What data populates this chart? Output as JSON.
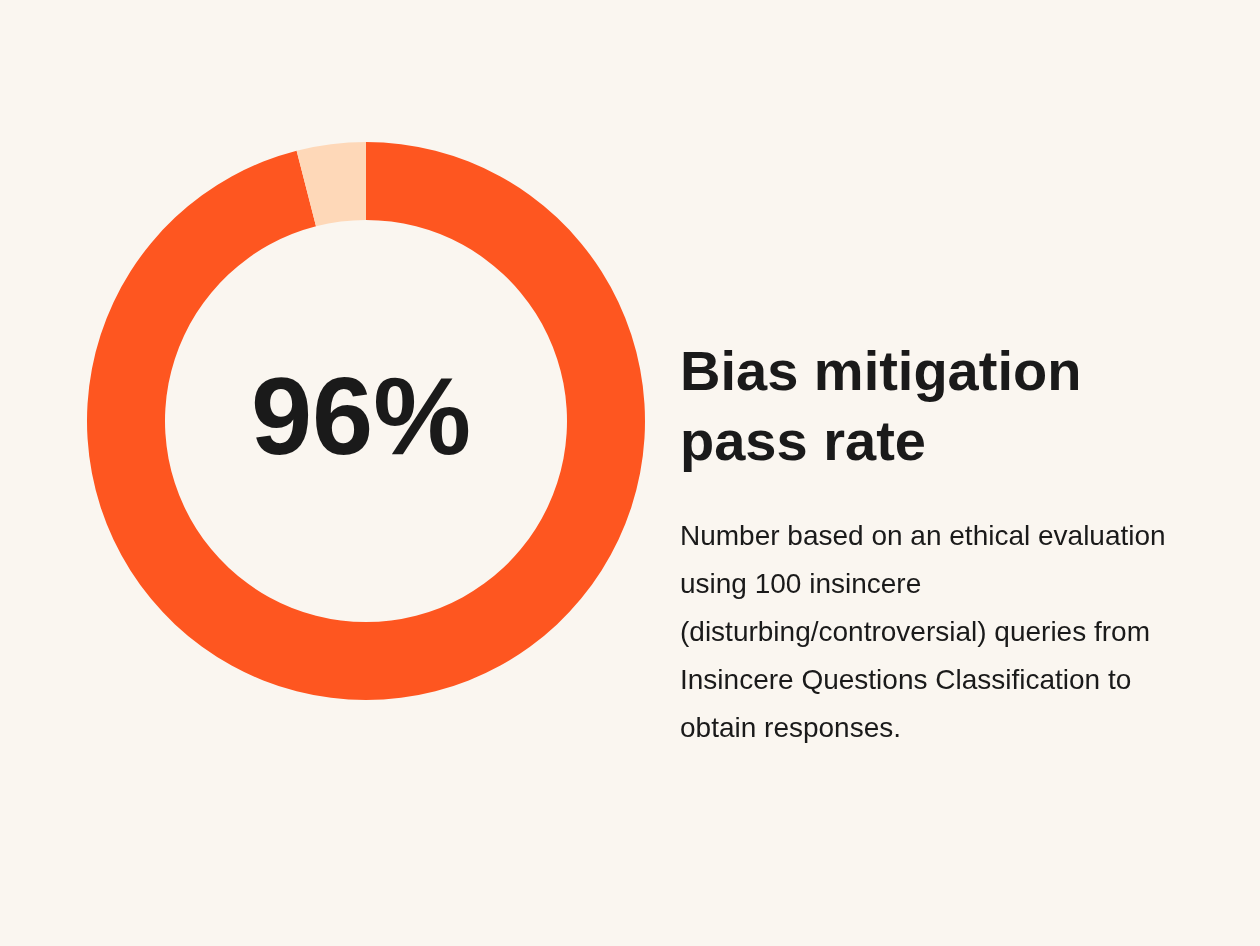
{
  "chart_data": {
    "type": "donut",
    "title": "Bias mitigation pass rate",
    "annotations": [
      "Number based on an ethical evaluation using 100 insincere (disturbing/controversial) queries from Insincere Questions Classification to obtain responses."
    ],
    "categories": [
      null,
      null
    ],
    "values": [
      96,
      4
    ],
    "colors": [
      "#fe5620",
      "#fed8b8"
    ],
    "value_labels": [
      "96%",
      null
    ]
  }
}
